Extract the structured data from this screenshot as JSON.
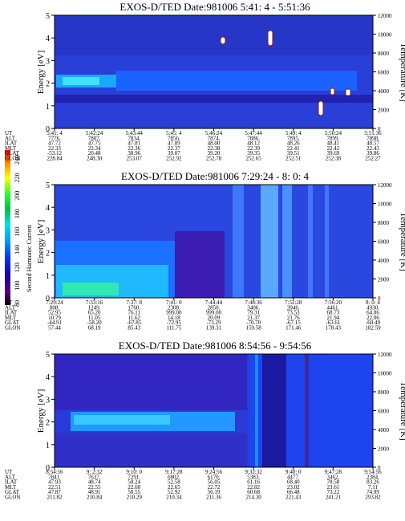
{
  "colorbar": {
    "label": "Second Harmonic Current",
    "ticks": [
      "240",
      "220",
      "200",
      "180",
      "160",
      "140",
      "120",
      "100",
      "80"
    ]
  },
  "chart_data": [
    {
      "type": "heatmap",
      "title": "EXOS-D/TED   Date:981006  5:41: 4 - 5:51:36",
      "ylabel": "Energy [eV]",
      "y2label": "Temperature [K]",
      "ylim": [
        0,
        5
      ],
      "y2lim": [
        0,
        12000
      ],
      "yticks": [
        "0",
        "1",
        "2",
        "3",
        "4",
        "5"
      ],
      "y2ticks": [
        "0",
        "2000",
        "4000",
        "6000",
        "8000",
        "10000",
        "12000"
      ],
      "table_rows": [
        "UT",
        "ALT",
        "ILAT",
        "MLT",
        "GLAT",
        "GLON"
      ],
      "table": [
        [
          "5:41: 4",
          "7776.",
          "47.72",
          "22.33",
          "-53.12",
          "228.84"
        ],
        [
          "5:42:24",
          "7807.",
          "47.75",
          "22.34",
          "20.48",
          "248.30"
        ],
        [
          "5:43:44",
          "7834.",
          "47.81",
          "22.36",
          "38.96",
          "253.07"
        ],
        [
          "5:45: 4",
          "7856.",
          "47.89",
          "22.37",
          "39.07",
          "252.92"
        ],
        [
          "5:46:24",
          "7874.",
          "48.00",
          "22.38",
          "39.20",
          "252.78"
        ],
        [
          "5:47:44",
          "7886.",
          "48.12",
          "22.39",
          "39.35",
          "252.65"
        ],
        [
          "5:49: 4",
          "7895.",
          "48.26",
          "22.41",
          "39.51",
          "252.51"
        ],
        [
          "5:50:24",
          "7899.",
          "48.41",
          "22.42",
          "39.69",
          "252.38"
        ],
        [
          "5:51:36",
          "7898.",
          "48.57",
          "22.43",
          "39.86",
          "252.27"
        ]
      ]
    },
    {
      "type": "heatmap",
      "title": "EXOS-D/TED   Date:981006  7:29:24 - 8: 0: 4",
      "ylabel": "Energy [eV]",
      "y2label": "Temperature [K]",
      "ylim": [
        0,
        5
      ],
      "y2lim": [
        0,
        12000
      ],
      "yticks": [
        "0",
        "1",
        "2",
        "3",
        "4",
        "5"
      ],
      "y2ticks": [
        "0",
        "2000",
        "4000",
        "6000",
        "8000",
        "10000",
        "12000"
      ],
      "table_rows": [
        "UT",
        "ALT",
        "ILAT",
        "MLT",
        "GLAT",
        "GLON"
      ],
      "table": [
        [
          "7:29:24",
          "808.",
          "52.95",
          "10.79",
          "-44.91",
          "57.44"
        ],
        [
          "7:33:16",
          "1249.",
          "65.20",
          "11.05",
          "-58.20",
          "68.19"
        ],
        [
          "7:37: 8",
          "1760.",
          "76.11",
          "11.62",
          "-67.85",
          "85.43"
        ],
        [
          "7:41: 0",
          "2308.",
          "999.00",
          "14.18",
          "-72.95",
          "111.75"
        ],
        [
          "7:44:44",
          "2850.",
          "999.00",
          "20.09",
          "-73.29",
          "139.31"
        ],
        [
          "7:48:36",
          "3406.",
          "79.31",
          "21.37",
          "-70.70",
          "159.58"
        ],
        [
          "7:52:28",
          "3946.",
          "73.53",
          "21.76",
          "-67.15",
          "171.46"
        ],
        [
          "7:56:20",
          "4461.",
          "68.73",
          "21.94",
          "-63.61",
          "178.43"
        ],
        [
          "8: 0: 4",
          "4930.",
          "64.86",
          "22.06",
          "-60.49",
          "182.59"
        ]
      ]
    },
    {
      "type": "heatmap",
      "title": "EXOS-D/TED   Date:981006  8:54:56 - 9:54:56",
      "ylabel": "Energy [eV]",
      "y2label": "Temperature [K]",
      "ylim": [
        0,
        5
      ],
      "y2lim": [
        0,
        12000
      ],
      "yticks": [
        "0",
        "1",
        "2",
        "3",
        "4",
        "5"
      ],
      "y2ticks": [
        "0",
        "2000",
        "4000",
        "6000",
        "8000",
        "10000",
        "12000"
      ],
      "table_rows": [
        "UT",
        "ALT",
        "ILAT",
        "MLT",
        "GLAT",
        "GLON"
      ],
      "table": [
        [
          "8:54:56",
          "7841.",
          "47.93",
          "22.51",
          "47.87",
          "211.82"
        ],
        [
          "9: 2:32",
          "7637.",
          "48.74",
          "22.55",
          "48.91",
          "210.84"
        ],
        [
          "9:10: 0",
          "7291.",
          "50.24",
          "22.60",
          "50.55",
          "210.29"
        ],
        [
          "9:17:28",
          "6802.",
          "52.58",
          "22.65",
          "52.92",
          "210.34"
        ],
        [
          "9:24:56",
          "6170.",
          "56.05",
          "22.72",
          "56.19",
          "211.36"
        ],
        [
          "9:32:32",
          "5383.",
          "61.16",
          "22.82",
          "60.68",
          "214.30"
        ],
        [
          "9:40: 0",
          "4477.",
          "68.40",
          "23.02",
          "66.48",
          "221.43"
        ],
        [
          "9:47:28",
          "3462.",
          "78.58",
          "23.61",
          "73.22",
          "241.21"
        ],
        [
          "9:54:56",
          "2384.",
          "83.26",
          "7.11",
          "74.99",
          "293.82"
        ]
      ]
    }
  ]
}
